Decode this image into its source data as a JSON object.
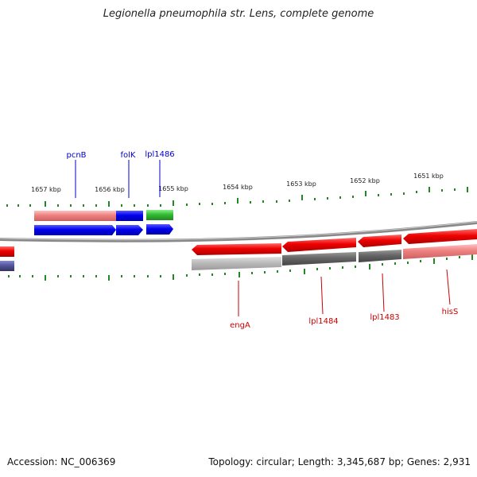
{
  "title": "Legionella pneumophila str. Lens, complete genome",
  "footer": {
    "accession": "Accession: NC_006369",
    "topology": "Topology: circular; Length: 3,345,687 bp; Genes: 2,931"
  },
  "ruler_labels": [
    "1657 kbp",
    "1656 kbp",
    "1655 kbp",
    "1654 kbp",
    "1653 kbp",
    "1652 kbp",
    "1651 kbp"
  ],
  "gene_labels_forward": [
    "pcnB",
    "folK",
    "lpl1486"
  ],
  "gene_labels_reverse": [
    "engA",
    "lpl1484",
    "lpl1483",
    "hisS"
  ],
  "colors": {
    "forward_gene": "#0000ee",
    "forward_gene_alt": "#33bb33",
    "reverse_gene": "#ee0000",
    "label_forward": "#0000cc",
    "label_reverse": "#cc0000",
    "tick": "#228822",
    "backbone": "#888888"
  }
}
